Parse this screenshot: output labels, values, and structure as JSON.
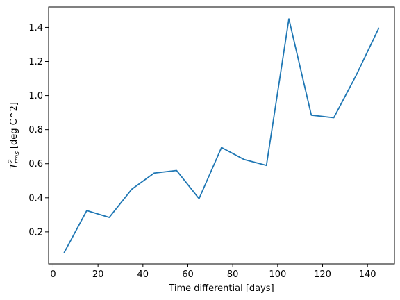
{
  "chart_data": {
    "type": "line",
    "xlabel": "Time differential [days]",
    "ylabel": {
      "symbol": "T",
      "superscript": "2",
      "subscript": "rms",
      "units": "[deg C^2]"
    },
    "xlim": [
      -2,
      152
    ],
    "ylim": [
      0.012,
      1.52
    ],
    "xticks": [
      0,
      20,
      40,
      60,
      80,
      100,
      120,
      140
    ],
    "xtick_labels": [
      "0",
      "20",
      "40",
      "60",
      "80",
      "100",
      "120",
      "140"
    ],
    "yticks": [
      0.2,
      0.4,
      0.6,
      0.8,
      1.0,
      1.2,
      1.4
    ],
    "ytick_labels": [
      "0.2",
      "0.4",
      "0.6",
      "0.8",
      "1.0",
      "1.2",
      "1.4"
    ],
    "series_color": "#1f77b4",
    "grid": false,
    "x": [
      5,
      15,
      25,
      35,
      45,
      55,
      65,
      75,
      85,
      95,
      105,
      115,
      125,
      135,
      145
    ],
    "values": [
      0.08,
      0.325,
      0.285,
      0.45,
      0.545,
      0.56,
      0.395,
      0.695,
      0.625,
      0.59,
      1.45,
      0.885,
      0.87,
      1.12,
      1.395
    ]
  }
}
